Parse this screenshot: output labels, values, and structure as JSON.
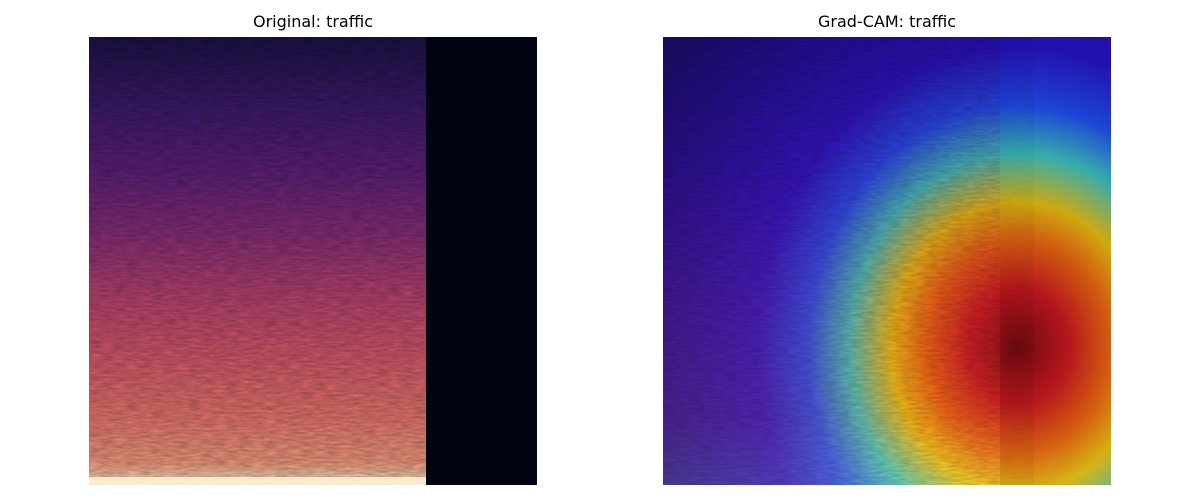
{
  "figure": {
    "left_title": "Original: traffic",
    "right_title": "Grad-CAM: traffic"
  }
}
